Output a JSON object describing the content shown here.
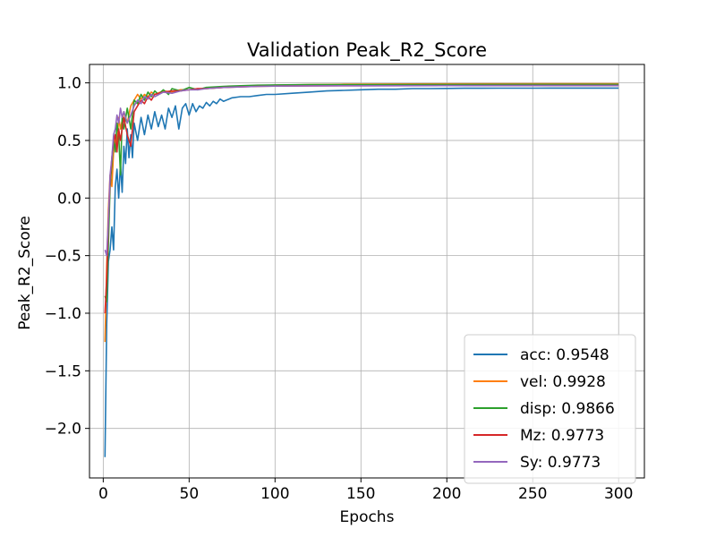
{
  "chart_data": {
    "type": "line",
    "title": "Validation Peak_R2_Score",
    "xlabel": "Epochs",
    "ylabel": "Peak_R2_Score",
    "xlim": [
      -8,
      315
    ],
    "ylim": [
      -2.43,
      1.16
    ],
    "xticks": [
      0,
      50,
      100,
      150,
      200,
      250,
      300
    ],
    "xtick_labels": [
      "0",
      "50",
      "100",
      "150",
      "200",
      "250",
      "300"
    ],
    "yticks": [
      -2.0,
      -1.5,
      -1.0,
      -0.5,
      0.0,
      0.5,
      1.0
    ],
    "ytick_labels": [
      "−2.0",
      "−1.5",
      "−1.0",
      "−0.5",
      "0.0",
      "0.5",
      "1.0"
    ],
    "grid": true,
    "legend_position": "lower-right",
    "series": [
      {
        "name": "acc: 0.9548",
        "color": "#1f77b4",
        "points": [
          [
            1,
            -2.25
          ],
          [
            2,
            -1.1
          ],
          [
            3,
            -0.55
          ],
          [
            4,
            -0.45
          ],
          [
            5,
            -0.25
          ],
          [
            6,
            -0.45
          ],
          [
            7,
            0.1
          ],
          [
            8,
            0.25
          ],
          [
            9,
            0.0
          ],
          [
            10,
            0.3
          ],
          [
            11,
            0.05
          ],
          [
            12,
            0.45
          ],
          [
            13,
            0.3
          ],
          [
            14,
            0.6
          ],
          [
            15,
            0.35
          ],
          [
            16,
            0.55
          ],
          [
            17,
            0.35
          ],
          [
            18,
            0.65
          ],
          [
            20,
            0.5
          ],
          [
            22,
            0.7
          ],
          [
            24,
            0.55
          ],
          [
            26,
            0.72
          ],
          [
            28,
            0.6
          ],
          [
            30,
            0.75
          ],
          [
            32,
            0.62
          ],
          [
            34,
            0.72
          ],
          [
            36,
            0.6
          ],
          [
            38,
            0.78
          ],
          [
            40,
            0.7
          ],
          [
            42,
            0.8
          ],
          [
            44,
            0.6
          ],
          [
            46,
            0.78
          ],
          [
            48,
            0.82
          ],
          [
            50,
            0.72
          ],
          [
            52,
            0.82
          ],
          [
            54,
            0.75
          ],
          [
            56,
            0.8
          ],
          [
            58,
            0.78
          ],
          [
            60,
            0.83
          ],
          [
            62,
            0.8
          ],
          [
            64,
            0.84
          ],
          [
            66,
            0.82
          ],
          [
            68,
            0.86
          ],
          [
            70,
            0.84
          ],
          [
            75,
            0.87
          ],
          [
            80,
            0.88
          ],
          [
            85,
            0.88
          ],
          [
            90,
            0.89
          ],
          [
            95,
            0.9
          ],
          [
            100,
            0.9
          ],
          [
            110,
            0.91
          ],
          [
            120,
            0.92
          ],
          [
            130,
            0.93
          ],
          [
            140,
            0.935
          ],
          [
            150,
            0.94
          ],
          [
            160,
            0.945
          ],
          [
            170,
            0.945
          ],
          [
            180,
            0.95
          ],
          [
            190,
            0.95
          ],
          [
            200,
            0.952
          ],
          [
            210,
            0.953
          ],
          [
            220,
            0.953
          ],
          [
            230,
            0.954
          ],
          [
            240,
            0.954
          ],
          [
            250,
            0.954
          ],
          [
            260,
            0.955
          ],
          [
            270,
            0.955
          ],
          [
            280,
            0.955
          ],
          [
            290,
            0.955
          ],
          [
            300,
            0.955
          ]
        ]
      },
      {
        "name": "vel: 0.9928",
        "color": "#ff7f0e",
        "points": [
          [
            1,
            -1.25
          ],
          [
            2,
            -0.6
          ],
          [
            3,
            -0.1
          ],
          [
            4,
            0.2
          ],
          [
            5,
            0.1
          ],
          [
            6,
            0.4
          ],
          [
            7,
            0.55
          ],
          [
            8,
            0.45
          ],
          [
            9,
            0.7
          ],
          [
            10,
            0.6
          ],
          [
            12,
            0.75
          ],
          [
            14,
            0.65
          ],
          [
            16,
            0.8
          ],
          [
            18,
            0.85
          ],
          [
            20,
            0.9
          ],
          [
            22,
            0.86
          ],
          [
            24,
            0.9
          ],
          [
            26,
            0.88
          ],
          [
            28,
            0.92
          ],
          [
            30,
            0.9
          ],
          [
            35,
            0.93
          ],
          [
            40,
            0.92
          ],
          [
            45,
            0.94
          ],
          [
            50,
            0.94
          ],
          [
            55,
            0.95
          ],
          [
            60,
            0.95
          ],
          [
            70,
            0.96
          ],
          [
            80,
            0.97
          ],
          [
            90,
            0.975
          ],
          [
            100,
            0.98
          ],
          [
            120,
            0.985
          ],
          [
            140,
            0.988
          ],
          [
            160,
            0.99
          ],
          [
            200,
            0.991
          ],
          [
            250,
            0.992
          ],
          [
            300,
            0.993
          ]
        ]
      },
      {
        "name": "disp: 0.9866",
        "color": "#2ca02c",
        "points": [
          [
            1,
            -0.85
          ],
          [
            2,
            -0.9
          ],
          [
            3,
            -0.4
          ],
          [
            4,
            0.1
          ],
          [
            5,
            0.3
          ],
          [
            6,
            0.5
          ],
          [
            7,
            0.4
          ],
          [
            8,
            0.65
          ],
          [
            9,
            0.55
          ],
          [
            10,
            0.2
          ],
          [
            11,
            0.7
          ],
          [
            12,
            0.6
          ],
          [
            14,
            0.78
          ],
          [
            16,
            0.6
          ],
          [
            18,
            0.85
          ],
          [
            20,
            0.82
          ],
          [
            22,
            0.9
          ],
          [
            24,
            0.85
          ],
          [
            26,
            0.92
          ],
          [
            28,
            0.88
          ],
          [
            30,
            0.93
          ],
          [
            32,
            0.9
          ],
          [
            35,
            0.94
          ],
          [
            38,
            0.9
          ],
          [
            40,
            0.95
          ],
          [
            45,
            0.93
          ],
          [
            50,
            0.96
          ],
          [
            55,
            0.94
          ],
          [
            60,
            0.96
          ],
          [
            70,
            0.97
          ],
          [
            80,
            0.975
          ],
          [
            90,
            0.98
          ],
          [
            100,
            0.982
          ],
          [
            120,
            0.984
          ],
          [
            150,
            0.985
          ],
          [
            200,
            0.986
          ],
          [
            250,
            0.987
          ],
          [
            300,
            0.987
          ]
        ]
      },
      {
        "name": "Mz: 0.9773",
        "color": "#d62728",
        "points": [
          [
            1,
            -1.0
          ],
          [
            2,
            -0.7
          ],
          [
            3,
            -0.2
          ],
          [
            4,
            0.15
          ],
          [
            5,
            0.35
          ],
          [
            6,
            0.5
          ],
          [
            7,
            0.55
          ],
          [
            8,
            0.4
          ],
          [
            9,
            0.6
          ],
          [
            10,
            0.5
          ],
          [
            12,
            0.7
          ],
          [
            14,
            0.55
          ],
          [
            16,
            0.45
          ],
          [
            18,
            0.75
          ],
          [
            20,
            0.8
          ],
          [
            22,
            0.85
          ],
          [
            24,
            0.82
          ],
          [
            26,
            0.88
          ],
          [
            28,
            0.85
          ],
          [
            30,
            0.9
          ],
          [
            35,
            0.92
          ],
          [
            40,
            0.93
          ],
          [
            45,
            0.93
          ],
          [
            50,
            0.94
          ],
          [
            55,
            0.95
          ],
          [
            60,
            0.95
          ],
          [
            70,
            0.96
          ],
          [
            80,
            0.965
          ],
          [
            90,
            0.97
          ],
          [
            100,
            0.972
          ],
          [
            120,
            0.974
          ],
          [
            150,
            0.975
          ],
          [
            200,
            0.976
          ],
          [
            250,
            0.977
          ],
          [
            300,
            0.977
          ]
        ]
      },
      {
        "name": "Sy: 0.9773",
        "color": "#9467bd",
        "points": [
          [
            1,
            -0.45
          ],
          [
            2,
            -0.5
          ],
          [
            3,
            -0.2
          ],
          [
            4,
            0.2
          ],
          [
            5,
            0.35
          ],
          [
            6,
            0.55
          ],
          [
            7,
            0.6
          ],
          [
            8,
            0.72
          ],
          [
            9,
            0.65
          ],
          [
            10,
            0.78
          ],
          [
            11,
            0.7
          ],
          [
            12,
            0.75
          ],
          [
            14,
            0.65
          ],
          [
            16,
            0.72
          ],
          [
            18,
            0.8
          ],
          [
            20,
            0.85
          ],
          [
            22,
            0.82
          ],
          [
            24,
            0.88
          ],
          [
            26,
            0.86
          ],
          [
            28,
            0.9
          ],
          [
            30,
            0.88
          ],
          [
            35,
            0.92
          ],
          [
            40,
            0.91
          ],
          [
            45,
            0.93
          ],
          [
            50,
            0.94
          ],
          [
            55,
            0.94
          ],
          [
            60,
            0.95
          ],
          [
            70,
            0.96
          ],
          [
            80,
            0.965
          ],
          [
            90,
            0.97
          ],
          [
            100,
            0.972
          ],
          [
            120,
            0.974
          ],
          [
            150,
            0.975
          ],
          [
            200,
            0.976
          ],
          [
            250,
            0.977
          ],
          [
            300,
            0.977
          ]
        ]
      }
    ]
  }
}
